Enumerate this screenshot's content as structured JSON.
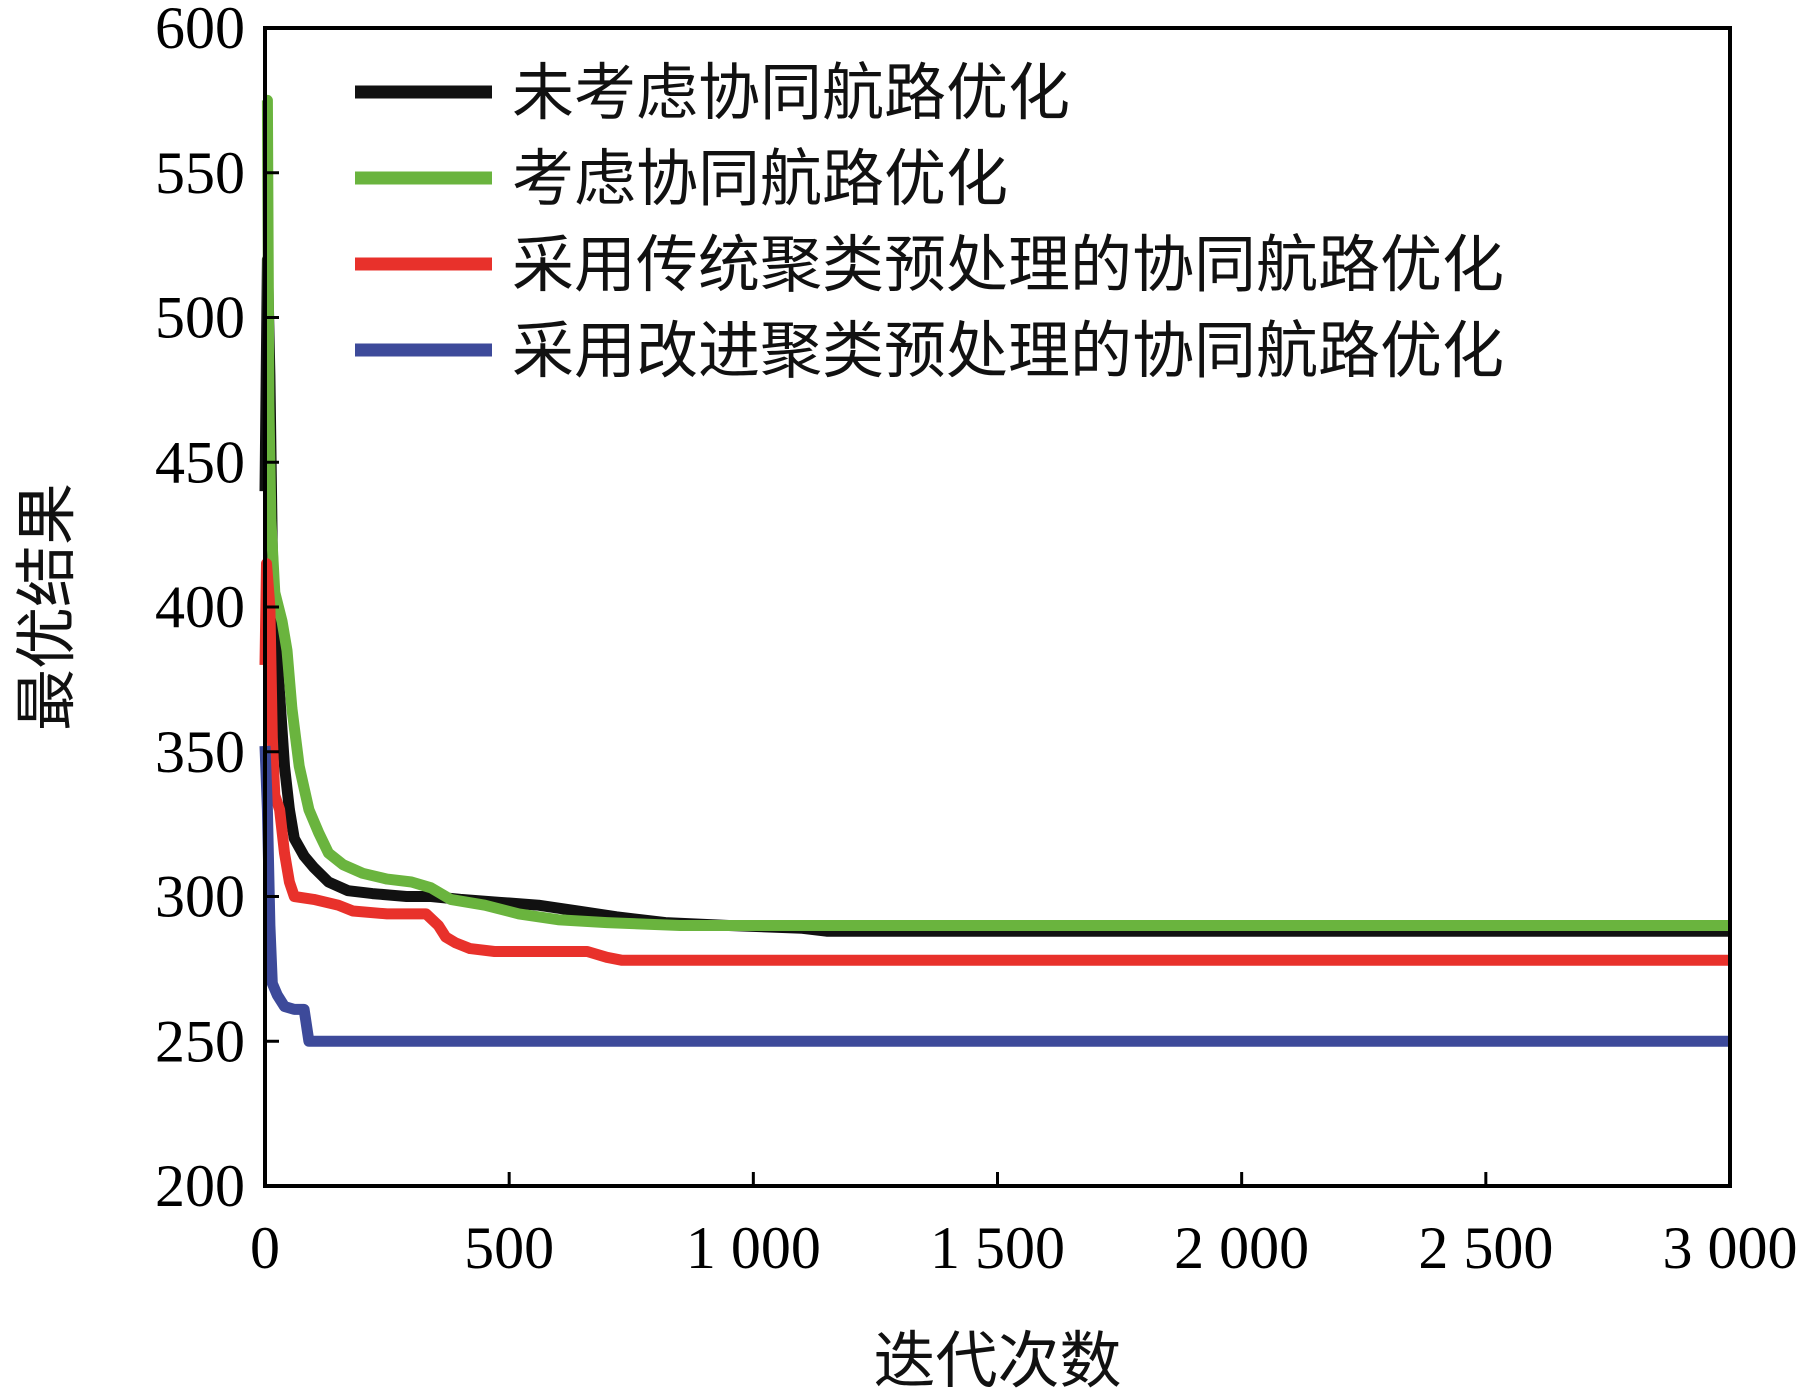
{
  "chart_data": {
    "type": "line",
    "title": "",
    "xlabel": "迭代次数",
    "ylabel": "最优结果",
    "xlim": [
      0,
      3000
    ],
    "ylim": [
      200,
      600
    ],
    "xticks": [
      {
        "value": 0,
        "label": "0"
      },
      {
        "value": 500,
        "label": "500"
      },
      {
        "value": 1000,
        "label": "1 000"
      },
      {
        "value": 1500,
        "label": "1 500"
      },
      {
        "value": 2000,
        "label": "2 000"
      },
      {
        "value": 2500,
        "label": "2 500"
      },
      {
        "value": 3000,
        "label": "3 000"
      }
    ],
    "yticks": [
      {
        "value": 200,
        "label": "200"
      },
      {
        "value": 250,
        "label": "250"
      },
      {
        "value": 300,
        "label": "300"
      },
      {
        "value": 350,
        "label": "350"
      },
      {
        "value": 400,
        "label": "400"
      },
      {
        "value": 450,
        "label": "450"
      },
      {
        "value": 500,
        "label": "500"
      },
      {
        "value": 550,
        "label": "550"
      },
      {
        "value": 600,
        "label": "600"
      }
    ],
    "legend_position": "top-right",
    "grid": false,
    "series": [
      {
        "name": "未考虑协同航路优化",
        "color": "#111111",
        "points": [
          [
            0,
            440
          ],
          [
            5,
            520
          ],
          [
            10,
            480
          ],
          [
            15,
            420
          ],
          [
            20,
            395
          ],
          [
            30,
            370
          ],
          [
            40,
            345
          ],
          [
            50,
            330
          ],
          [
            60,
            320
          ],
          [
            80,
            314
          ],
          [
            100,
            310
          ],
          [
            130,
            305
          ],
          [
            170,
            302
          ],
          [
            220,
            301
          ],
          [
            290,
            300
          ],
          [
            340,
            300
          ],
          [
            400,
            299
          ],
          [
            480,
            298
          ],
          [
            560,
            297
          ],
          [
            640,
            295
          ],
          [
            720,
            293
          ],
          [
            820,
            291
          ],
          [
            950,
            290
          ],
          [
            1100,
            289
          ],
          [
            1150,
            288
          ],
          [
            3000,
            288
          ]
        ]
      },
      {
        "name": "考虑协同航路优化",
        "color": "#6ab43e",
        "points": [
          [
            0,
            575
          ],
          [
            5,
            575
          ],
          [
            8,
            470
          ],
          [
            12,
            430
          ],
          [
            20,
            405
          ],
          [
            35,
            395
          ],
          [
            45,
            385
          ],
          [
            55,
            365
          ],
          [
            70,
            345
          ],
          [
            90,
            330
          ],
          [
            110,
            322
          ],
          [
            130,
            315
          ],
          [
            160,
            311
          ],
          [
            200,
            308
          ],
          [
            250,
            306
          ],
          [
            300,
            305
          ],
          [
            340,
            303
          ],
          [
            380,
            299
          ],
          [
            450,
            297
          ],
          [
            520,
            294
          ],
          [
            600,
            292
          ],
          [
            700,
            291
          ],
          [
            850,
            290
          ],
          [
            1000,
            290
          ],
          [
            1200,
            290
          ],
          [
            3000,
            290
          ]
        ]
      },
      {
        "name": "采用传统聚类预处理的协同航路优化",
        "color": "#e8312b",
        "points": [
          [
            0,
            380
          ],
          [
            3,
            415
          ],
          [
            10,
            400
          ],
          [
            15,
            355
          ],
          [
            20,
            335
          ],
          [
            30,
            330
          ],
          [
            40,
            315
          ],
          [
            50,
            305
          ],
          [
            60,
            300
          ],
          [
            100,
            299
          ],
          [
            150,
            297
          ],
          [
            180,
            295
          ],
          [
            250,
            294
          ],
          [
            330,
            294
          ],
          [
            355,
            290
          ],
          [
            370,
            286
          ],
          [
            390,
            284
          ],
          [
            420,
            282
          ],
          [
            470,
            281
          ],
          [
            550,
            281
          ],
          [
            660,
            281
          ],
          [
            700,
            279
          ],
          [
            730,
            278
          ],
          [
            3000,
            278
          ]
        ]
      },
      {
        "name": "采用改进聚类预处理的协同航路优化",
        "color": "#3d4a9a",
        "points": [
          [
            0,
            352
          ],
          [
            5,
            330
          ],
          [
            10,
            290
          ],
          [
            15,
            270
          ],
          [
            25,
            266
          ],
          [
            40,
            262
          ],
          [
            60,
            261
          ],
          [
            80,
            261
          ],
          [
            90,
            250
          ],
          [
            3000,
            250
          ]
        ]
      }
    ]
  }
}
